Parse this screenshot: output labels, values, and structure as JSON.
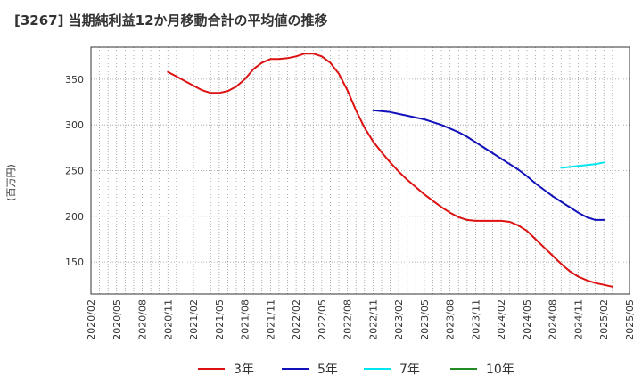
{
  "chart_data": {
    "type": "line",
    "title": "[3267]  当期純利益12か月移動合計の平均値の推移",
    "ylabel": "(百万円)",
    "xlabel": "",
    "ylim": [
      115,
      385
    ],
    "yticks": [
      150,
      200,
      250,
      300,
      350
    ],
    "x_tick_labels": [
      "2020/02",
      "2020/05",
      "2020/08",
      "2020/11",
      "2021/02",
      "2021/05",
      "2021/08",
      "2021/11",
      "2022/02",
      "2022/05",
      "2022/08",
      "2022/11",
      "2023/02",
      "2023/05",
      "2023/08",
      "2023/11",
      "2024/02",
      "2024/05",
      "2024/08",
      "2024/11",
      "2025/02",
      "2025/05"
    ],
    "x_start": "2020/02",
    "x_end": "2025/05",
    "grid": true,
    "legend_position": "bottom",
    "series": [
      {
        "name": "3年",
        "color": "#dd1111",
        "start": "2020/11",
        "values": [
          358,
          353,
          348,
          343,
          338,
          335,
          335,
          337,
          342,
          350,
          361,
          368,
          372,
          372,
          373,
          375,
          378,
          378,
          375,
          368,
          356,
          338,
          316,
          297,
          282,
          270,
          259,
          249,
          240,
          232,
          224,
          217,
          210,
          204,
          199,
          196,
          195,
          195,
          195,
          195,
          194,
          190,
          184,
          175,
          166,
          157,
          148,
          140,
          134,
          130,
          127,
          125,
          123
        ]
      },
      {
        "name": "5年",
        "color": "#1111bb",
        "start": "2022/11",
        "values": [
          316,
          315,
          314,
          312,
          310,
          308,
          306,
          303,
          300,
          296,
          292,
          287,
          281,
          275,
          269,
          263,
          257,
          251,
          244,
          236,
          229,
          222,
          216,
          210,
          204,
          199,
          196,
          196
        ]
      },
      {
        "name": "7年",
        "color": "#00e5ee",
        "start": "2024/09",
        "values": [
          253,
          254,
          255,
          256,
          257,
          259
        ]
      },
      {
        "name": "10年",
        "color": "#228b22",
        "start": "2025/02",
        "values": []
      }
    ]
  }
}
